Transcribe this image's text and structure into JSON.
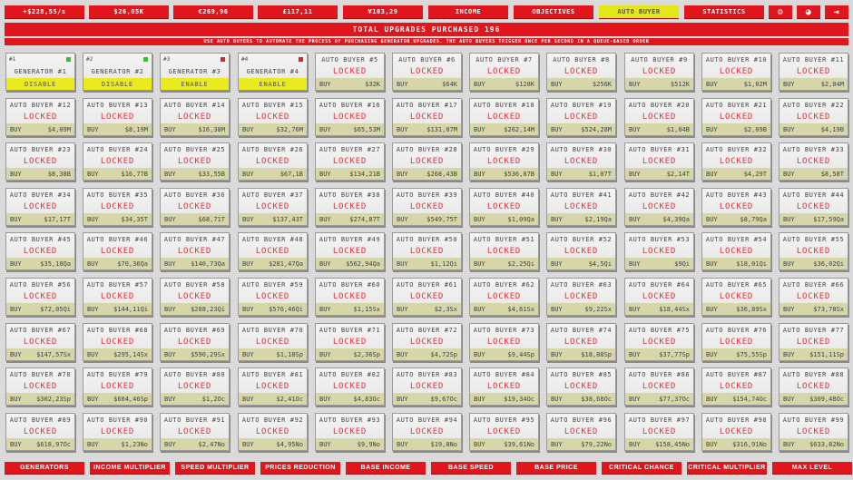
{
  "topbar": {
    "buttons": [
      {
        "label": "+$228,55/s",
        "name": "income-rate"
      },
      {
        "label": "$26,05K",
        "name": "dollar-balance"
      },
      {
        "label": "€269,96",
        "name": "euro-balance"
      },
      {
        "label": "£117,11",
        "name": "pound-balance"
      },
      {
        "label": "¥103,29",
        "name": "yen-balance"
      },
      {
        "label": "INCOME",
        "name": "income-tab"
      },
      {
        "label": "OBJECTIVES",
        "name": "objectives-tab"
      },
      {
        "label": "AUTO BUYER",
        "name": "auto-buyer-tab",
        "active": true
      },
      {
        "label": "STATISTICS",
        "name": "statistics-tab"
      }
    ],
    "icons": [
      {
        "icon": "gear-icon",
        "glyph": "⚙"
      },
      {
        "icon": "steam-icon",
        "glyph": "◕"
      },
      {
        "icon": "exit-icon",
        "glyph": "⇥"
      }
    ]
  },
  "total_banner": "TOTAL UPGRADES PURCHASED 196",
  "hint": "USE AUTO BUYERS TO AUTOMATE THE PROCESS OF PURCHASING GENERATOR UPGRADES. THE AUTO BUYERS TRIGGER ONCE PER SECOND IN A QUEUE-BASED ORDER",
  "colors": {
    "accent": "#e0161c",
    "active": "#e5e619",
    "on": "#22cc22",
    "off": "#dd2222",
    "locked": "#e0303a"
  },
  "generators": [
    {
      "num": "#1",
      "name": "GENERATOR #1",
      "status": "on",
      "button": "DISABLE"
    },
    {
      "num": "#2",
      "name": "GENERATOR #2",
      "status": "on",
      "button": "DISABLE"
    },
    {
      "num": "#3",
      "name": "GENERATOR #3",
      "status": "off",
      "button": "ENABLE"
    },
    {
      "num": "#4",
      "name": "GENERATOR #4",
      "status": "off",
      "button": "ENABLE"
    }
  ],
  "locked_label": "LOCKED",
  "buy_label": "BUY",
  "auto_buyers": [
    {
      "title": "AUTO BUYER #5",
      "price": "$32K"
    },
    {
      "title": "AUTO BUYER #6",
      "price": "$64K"
    },
    {
      "title": "AUTO BUYER #7",
      "price": "$128K"
    },
    {
      "title": "AUTO BUYER #8",
      "price": "$256K"
    },
    {
      "title": "AUTO BUYER #9",
      "price": "$512K"
    },
    {
      "title": "AUTO BUYER #10",
      "price": "$1,02M"
    },
    {
      "title": "AUTO BUYER #11",
      "price": "$2,04M"
    },
    {
      "title": "AUTO BUYER #12",
      "price": "$4,09M"
    },
    {
      "title": "AUTO BUYER #13",
      "price": "$8,19M"
    },
    {
      "title": "AUTO BUYER #14",
      "price": "$16,38M"
    },
    {
      "title": "AUTO BUYER #15",
      "price": "$32,76M"
    },
    {
      "title": "AUTO BUYER #16",
      "price": "$65,53M"
    },
    {
      "title": "AUTO BUYER #17",
      "price": "$131,07M"
    },
    {
      "title": "AUTO BUYER #18",
      "price": "$262,14M"
    },
    {
      "title": "AUTO BUYER #19",
      "price": "$524,28M"
    },
    {
      "title": "AUTO BUYER #20",
      "price": "$1,04B"
    },
    {
      "title": "AUTO BUYER #21",
      "price": "$2,09B"
    },
    {
      "title": "AUTO BUYER #22",
      "price": "$4,19B"
    },
    {
      "title": "AUTO BUYER #23",
      "price": "$8,38B"
    },
    {
      "title": "AUTO BUYER #24",
      "price": "$16,77B"
    },
    {
      "title": "AUTO BUYER #25",
      "price": "$33,55B"
    },
    {
      "title": "AUTO BUYER #26",
      "price": "$67,1B"
    },
    {
      "title": "AUTO BUYER #27",
      "price": "$134,21B"
    },
    {
      "title": "AUTO BUYER #28",
      "price": "$268,43B"
    },
    {
      "title": "AUTO BUYER #29",
      "price": "$536,87B"
    },
    {
      "title": "AUTO BUYER #30",
      "price": "$1,07T"
    },
    {
      "title": "AUTO BUYER #31",
      "price": "$2,14T"
    },
    {
      "title": "AUTO BUYER #32",
      "price": "$4,29T"
    },
    {
      "title": "AUTO BUYER #33",
      "price": "$8,58T"
    },
    {
      "title": "AUTO BUYER #34",
      "price": "$17,17T"
    },
    {
      "title": "AUTO BUYER #35",
      "price": "$34,35T"
    },
    {
      "title": "AUTO BUYER #36",
      "price": "$68,71T"
    },
    {
      "title": "AUTO BUYER #37",
      "price": "$137,43T"
    },
    {
      "title": "AUTO BUYER #38",
      "price": "$274,87T"
    },
    {
      "title": "AUTO BUYER #39",
      "price": "$549,75T"
    },
    {
      "title": "AUTO BUYER #40",
      "price": "$1,09Qa"
    },
    {
      "title": "AUTO BUYER #41",
      "price": "$2,19Qa"
    },
    {
      "title": "AUTO BUYER #42",
      "price": "$4,39Qa"
    },
    {
      "title": "AUTO BUYER #43",
      "price": "$8,79Qa"
    },
    {
      "title": "AUTO BUYER #44",
      "price": "$17,59Qa"
    },
    {
      "title": "AUTO BUYER #45",
      "price": "$35,18Qa"
    },
    {
      "title": "AUTO BUYER #46",
      "price": "$70,36Qa"
    },
    {
      "title": "AUTO BUYER #47",
      "price": "$140,73Qa"
    },
    {
      "title": "AUTO BUYER #48",
      "price": "$281,47Qa"
    },
    {
      "title": "AUTO BUYER #49",
      "price": "$562,94Qa"
    },
    {
      "title": "AUTO BUYER #50",
      "price": "$1,12Qi"
    },
    {
      "title": "AUTO BUYER #51",
      "price": "$2,25Qi"
    },
    {
      "title": "AUTO BUYER #52",
      "price": "$4,5Qi"
    },
    {
      "title": "AUTO BUYER #53",
      "price": "$9Qi"
    },
    {
      "title": "AUTO BUYER #54",
      "price": "$18,01Qi"
    },
    {
      "title": "AUTO BUYER #55",
      "price": "$36,02Qi"
    },
    {
      "title": "AUTO BUYER #56",
      "price": "$72,05Qi"
    },
    {
      "title": "AUTO BUYER #57",
      "price": "$144,11Qi"
    },
    {
      "title": "AUTO BUYER #58",
      "price": "$288,23Qi"
    },
    {
      "title": "AUTO BUYER #59",
      "price": "$576,46Qi"
    },
    {
      "title": "AUTO BUYER #60",
      "price": "$1,15Sx"
    },
    {
      "title": "AUTO BUYER #61",
      "price": "$2,3Sx"
    },
    {
      "title": "AUTO BUYER #62",
      "price": "$4,61Sx"
    },
    {
      "title": "AUTO BUYER #63",
      "price": "$9,22Sx"
    },
    {
      "title": "AUTO BUYER #64",
      "price": "$18,44Sx"
    },
    {
      "title": "AUTO BUYER #65",
      "price": "$36,89Sx"
    },
    {
      "title": "AUTO BUYER #66",
      "price": "$73,78Sx"
    },
    {
      "title": "AUTO BUYER #67",
      "price": "$147,57Sx"
    },
    {
      "title": "AUTO BUYER #68",
      "price": "$295,14Sx"
    },
    {
      "title": "AUTO BUYER #69",
      "price": "$590,29Sx"
    },
    {
      "title": "AUTO BUYER #70",
      "price": "$1,18Sp"
    },
    {
      "title": "AUTO BUYER #71",
      "price": "$2,36Sp"
    },
    {
      "title": "AUTO BUYER #72",
      "price": "$4,72Sp"
    },
    {
      "title": "AUTO BUYER #73",
      "price": "$9,44Sp"
    },
    {
      "title": "AUTO BUYER #74",
      "price": "$18,88Sp"
    },
    {
      "title": "AUTO BUYER #75",
      "price": "$37,77Sp"
    },
    {
      "title": "AUTO BUYER #76",
      "price": "$75,55Sp"
    },
    {
      "title": "AUTO BUYER #77",
      "price": "$151,11Sp"
    },
    {
      "title": "AUTO BUYER #78",
      "price": "$302,23Sp"
    },
    {
      "title": "AUTO BUYER #79",
      "price": "$604,46Sp"
    },
    {
      "title": "AUTO BUYER #80",
      "price": "$1,2Oc"
    },
    {
      "title": "AUTO BUYER #81",
      "price": "$2,41Oc"
    },
    {
      "title": "AUTO BUYER #82",
      "price": "$4,83Oc"
    },
    {
      "title": "AUTO BUYER #83",
      "price": "$9,67Oc"
    },
    {
      "title": "AUTO BUYER #84",
      "price": "$19,34Oc"
    },
    {
      "title": "AUTO BUYER #85",
      "price": "$38,68Oc"
    },
    {
      "title": "AUTO BUYER #86",
      "price": "$77,37Oc"
    },
    {
      "title": "AUTO BUYER #87",
      "price": "$154,74Oc"
    },
    {
      "title": "AUTO BUYER #88",
      "price": "$309,48Oc"
    },
    {
      "title": "AUTO BUYER #89",
      "price": "$618,97Oc"
    },
    {
      "title": "AUTO BUYER #90",
      "price": "$1,23No"
    },
    {
      "title": "AUTO BUYER #91",
      "price": "$2,47No"
    },
    {
      "title": "AUTO BUYER #92",
      "price": "$4,95No"
    },
    {
      "title": "AUTO BUYER #93",
      "price": "$9,9No"
    },
    {
      "title": "AUTO BUYER #94",
      "price": "$19,8No"
    },
    {
      "title": "AUTO BUYER #95",
      "price": "$39,61No"
    },
    {
      "title": "AUTO BUYER #96",
      "price": "$79,22No"
    },
    {
      "title": "AUTO BUYER #97",
      "price": "$158,45No"
    },
    {
      "title": "AUTO BUYER #98",
      "price": "$316,91No"
    },
    {
      "title": "AUTO BUYER #99",
      "price": "$633,82No"
    }
  ],
  "bottom_tabs": [
    "GENERATORS",
    "INCOME MULTIPLIER",
    "SPEED MULTIPLIER",
    "PRICES REDUCTION",
    "BASE INCOME",
    "BASE SPEED",
    "BASE PRICE",
    "CRITICAL CHANCE",
    "CRITICAL MULTIPLIER",
    "MAX LEVEL"
  ]
}
